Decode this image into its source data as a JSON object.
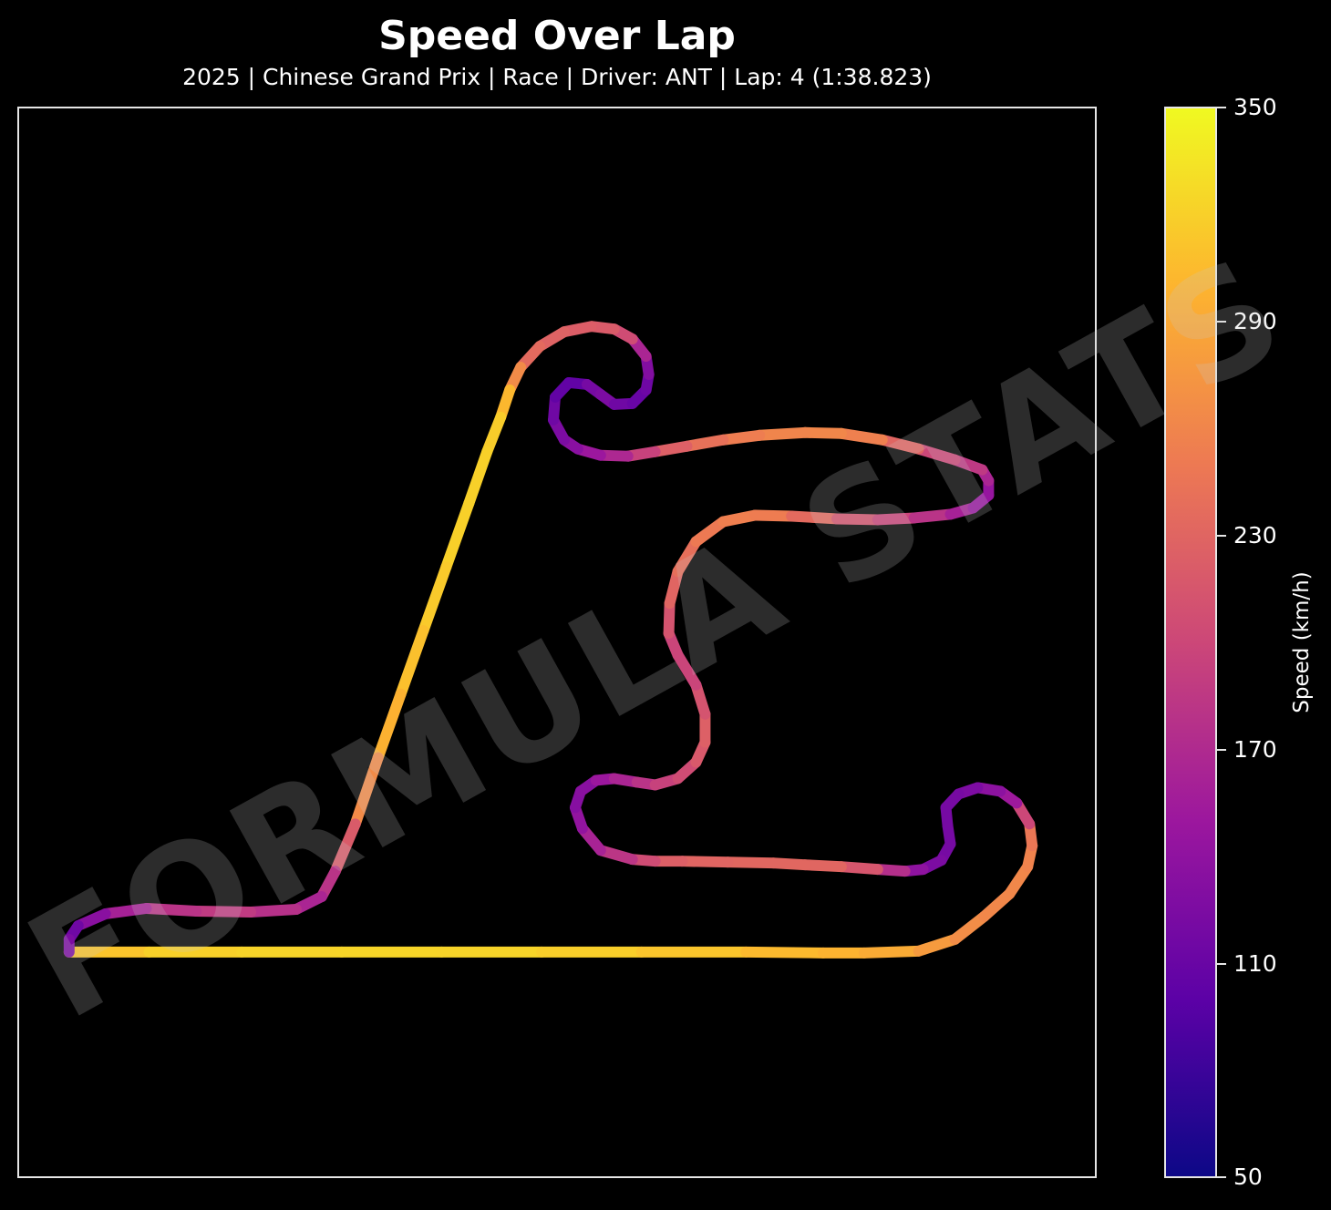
{
  "title": "Speed Over Lap",
  "subtitle": "2025 | Chinese Grand Prix | Race | Driver: ANT | Lap: 4 (1:38.823)",
  "watermark": "FORMULA STATS",
  "colorbar": {
    "label": "Speed (km/h)",
    "ticks": [
      "350",
      "290",
      "230",
      "170",
      "110",
      "50"
    ],
    "colormap": "plasma",
    "colors": [
      "#0d0887",
      "#5c01a6",
      "#9c179e",
      "#cc4778",
      "#ed7953",
      "#fdb42f",
      "#f0f921"
    ]
  },
  "chart_data": {
    "type": "line",
    "color_by": "speed",
    "vmin": 50,
    "vmax": 350,
    "grid": false,
    "xlim": [
      0,
      1184
    ],
    "ylim": [
      0,
      1176
    ],
    "points": [
      [
        55,
        929,
        305
      ],
      [
        143,
        929,
        318
      ],
      [
        245,
        929,
        322
      ],
      [
        355,
        929,
        324
      ],
      [
        465,
        929,
        324
      ],
      [
        575,
        929,
        322
      ],
      [
        685,
        929,
        316
      ],
      [
        800,
        929,
        308
      ],
      [
        885,
        930,
        300
      ],
      [
        930,
        930,
        298
      ],
      [
        990,
        928,
        286
      ],
      [
        1030,
        915,
        272
      ],
      [
        1062,
        890,
        262
      ],
      [
        1090,
        865,
        262
      ],
      [
        1110,
        835,
        262
      ],
      [
        1115,
        812,
        255
      ],
      [
        1112,
        788,
        240
      ],
      [
        1098,
        765,
        160
      ],
      [
        1080,
        752,
        145
      ],
      [
        1055,
        748,
        130
      ],
      [
        1034,
        755,
        122
      ],
      [
        1020,
        770,
        120
      ],
      [
        1022,
        790,
        120
      ],
      [
        1025,
        810,
        120
      ],
      [
        1015,
        828,
        120
      ],
      [
        995,
        838,
        130
      ],
      [
        975,
        840,
        150
      ],
      [
        945,
        838,
        200
      ],
      [
        905,
        835,
        230
      ],
      [
        865,
        833,
        232
      ],
      [
        830,
        831,
        233
      ],
      [
        780,
        830,
        232
      ],
      [
        730,
        829,
        228
      ],
      [
        700,
        829,
        220
      ],
      [
        675,
        827,
        190
      ],
      [
        640,
        817,
        175
      ],
      [
        620,
        793,
        150
      ],
      [
        612,
        770,
        135
      ],
      [
        618,
        752,
        130
      ],
      [
        635,
        740,
        140
      ],
      [
        655,
        738,
        160
      ],
      [
        680,
        742,
        170
      ],
      [
        700,
        745,
        190
      ],
      [
        725,
        738,
        200
      ],
      [
        745,
        720,
        210
      ],
      [
        755,
        698,
        225
      ],
      [
        755,
        667,
        225
      ],
      [
        745,
        635,
        200
      ],
      [
        725,
        602,
        195
      ],
      [
        715,
        578,
        200
      ],
      [
        716,
        545,
        225
      ],
      [
        725,
        510,
        235
      ],
      [
        745,
        477,
        245
      ],
      [
        775,
        455,
        255
      ],
      [
        810,
        448,
        255
      ],
      [
        850,
        449,
        250
      ],
      [
        900,
        452,
        220
      ],
      [
        945,
        453,
        205
      ],
      [
        985,
        451,
        190
      ],
      [
        1025,
        447,
        170
      ],
      [
        1050,
        440,
        150
      ],
      [
        1067,
        426,
        140
      ],
      [
        1067,
        410,
        150
      ],
      [
        1060,
        398,
        180
      ],
      [
        1030,
        387,
        190
      ],
      [
        990,
        375,
        210
      ],
      [
        950,
        365,
        250
      ],
      [
        905,
        358,
        262
      ],
      [
        865,
        357,
        262
      ],
      [
        815,
        360,
        258
      ],
      [
        775,
        365,
        248
      ],
      [
        735,
        372,
        235
      ],
      [
        700,
        378,
        215
      ],
      [
        670,
        383,
        175
      ],
      [
        640,
        382,
        160
      ],
      [
        615,
        375,
        140
      ],
      [
        600,
        365,
        130
      ],
      [
        588,
        343,
        120
      ],
      [
        590,
        318,
        110
      ],
      [
        605,
        302,
        100
      ],
      [
        625,
        304,
        110
      ],
      [
        640,
        315,
        130
      ],
      [
        655,
        326,
        120
      ],
      [
        675,
        325,
        110
      ],
      [
        690,
        310,
        108
      ],
      [
        693,
        293,
        120
      ],
      [
        690,
        273,
        140
      ],
      [
        675,
        254,
        190
      ],
      [
        655,
        243,
        220
      ],
      [
        630,
        240,
        220
      ],
      [
        600,
        246,
        225
      ],
      [
        573,
        262,
        230
      ],
      [
        552,
        285,
        240
      ],
      [
        540,
        310,
        290
      ],
      [
        530,
        340,
        315
      ],
      [
        515,
        378,
        320
      ],
      [
        495,
        435,
        320
      ],
      [
        470,
        505,
        320
      ],
      [
        445,
        575,
        312
      ],
      [
        420,
        645,
        305
      ],
      [
        395,
        715,
        290
      ],
      [
        370,
        788,
        240
      ],
      [
        348,
        840,
        200
      ],
      [
        333,
        868,
        160
      ],
      [
        305,
        882,
        170
      ],
      [
        255,
        885,
        185
      ],
      [
        195,
        884,
        190
      ],
      [
        140,
        881,
        170
      ],
      [
        95,
        887,
        150
      ],
      [
        65,
        900,
        120
      ],
      [
        55,
        915,
        110
      ],
      [
        55,
        929,
        140
      ]
    ]
  }
}
